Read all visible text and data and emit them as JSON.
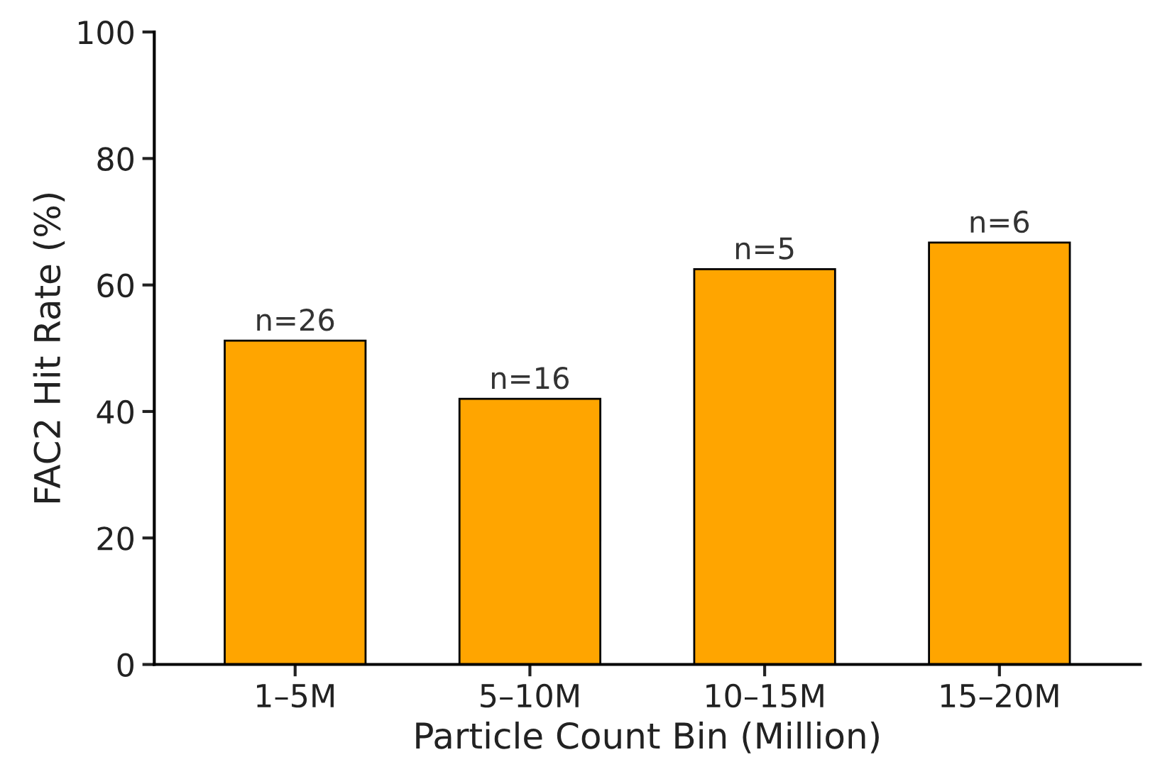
{
  "chart_data": {
    "type": "bar",
    "xlabel": "Particle Count Bin (Million)",
    "ylabel": "FAC2 Hit Rate (%)",
    "categories": [
      "1–5M",
      "5–10M",
      "10–15M",
      "15–20M"
    ],
    "values": [
      51.2,
      42.0,
      62.5,
      66.7
    ],
    "annotations": [
      {
        "text": "n=26",
        "x": "1–5M",
        "y": 51.2
      },
      {
        "text": "n=16",
        "x": "5–10M",
        "y": 42.0
      },
      {
        "text": "n=5",
        "x": "10–15M",
        "y": 62.5
      },
      {
        "text": "n=6",
        "x": "15–20M",
        "y": 66.7
      }
    ],
    "color": "#ffa500",
    "ylim": [
      0,
      100
    ],
    "yticks": [
      0,
      20,
      40,
      60,
      80,
      100
    ],
    "grid": false
  }
}
